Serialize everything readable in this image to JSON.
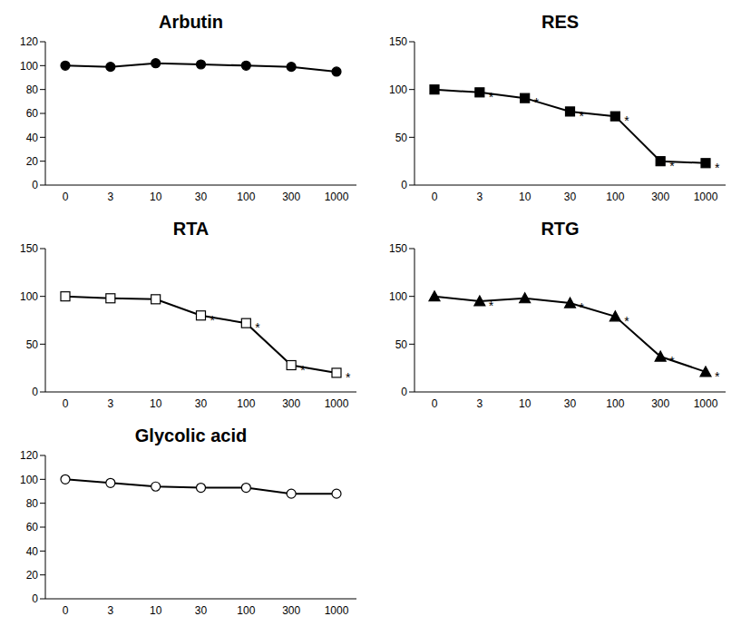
{
  "chart_data": [
    {
      "type": "line",
      "title": "Arbutin",
      "categories": [
        0,
        3,
        10,
        30,
        100,
        300,
        1000
      ],
      "values": [
        100,
        99,
        102,
        101,
        100,
        99,
        95
      ],
      "color": "#000000",
      "marker": "circle",
      "ylim": [
        0,
        120
      ],
      "yticks": [
        0,
        20,
        40,
        60,
        80,
        100,
        120
      ]
    },
    {
      "type": "line",
      "title": "RES",
      "categories": [
        0,
        3,
        10,
        30,
        100,
        300,
        1000
      ],
      "values": [
        100,
        97,
        91,
        77,
        72,
        25,
        23
      ],
      "color": "#000000",
      "marker": "square",
      "ylim": [
        0,
        150
      ],
      "yticks": [
        0,
        50,
        100,
        150
      ],
      "annotations": [
        null,
        "*",
        "*",
        "*",
        "*",
        "*",
        "*"
      ]
    },
    {
      "type": "line",
      "title": "RTA",
      "categories": [
        0,
        3,
        10,
        30,
        100,
        300,
        1000
      ],
      "values": [
        100,
        98,
        97,
        80,
        72,
        28,
        20
      ],
      "color": "#000000",
      "marker": "square_open",
      "ylim": [
        0,
        150
      ],
      "yticks": [
        0,
        50,
        100,
        150
      ],
      "annotations": [
        null,
        null,
        null,
        "*",
        "*",
        "*",
        "*"
      ]
    },
    {
      "type": "line",
      "title": "RTG",
      "categories": [
        0,
        3,
        10,
        30,
        100,
        300,
        1000
      ],
      "values": [
        100,
        95,
        98,
        93,
        79,
        37,
        21
      ],
      "color": "#000000",
      "marker": "triangle",
      "ylim": [
        0,
        150
      ],
      "yticks": [
        0,
        50,
        100,
        150
      ],
      "annotations": [
        null,
        "*",
        null,
        "*",
        "*",
        "*",
        "*"
      ]
    },
    {
      "type": "line",
      "title": "Glycolic acid",
      "categories": [
        0,
        3,
        10,
        30,
        100,
        300,
        1000
      ],
      "values": [
        100,
        97,
        94,
        93,
        93,
        88,
        88
      ],
      "color": "#000000",
      "marker": "circle_open",
      "ylim": [
        0,
        120
      ],
      "yticks": [
        0,
        20,
        40,
        60,
        80,
        100,
        120
      ]
    }
  ]
}
